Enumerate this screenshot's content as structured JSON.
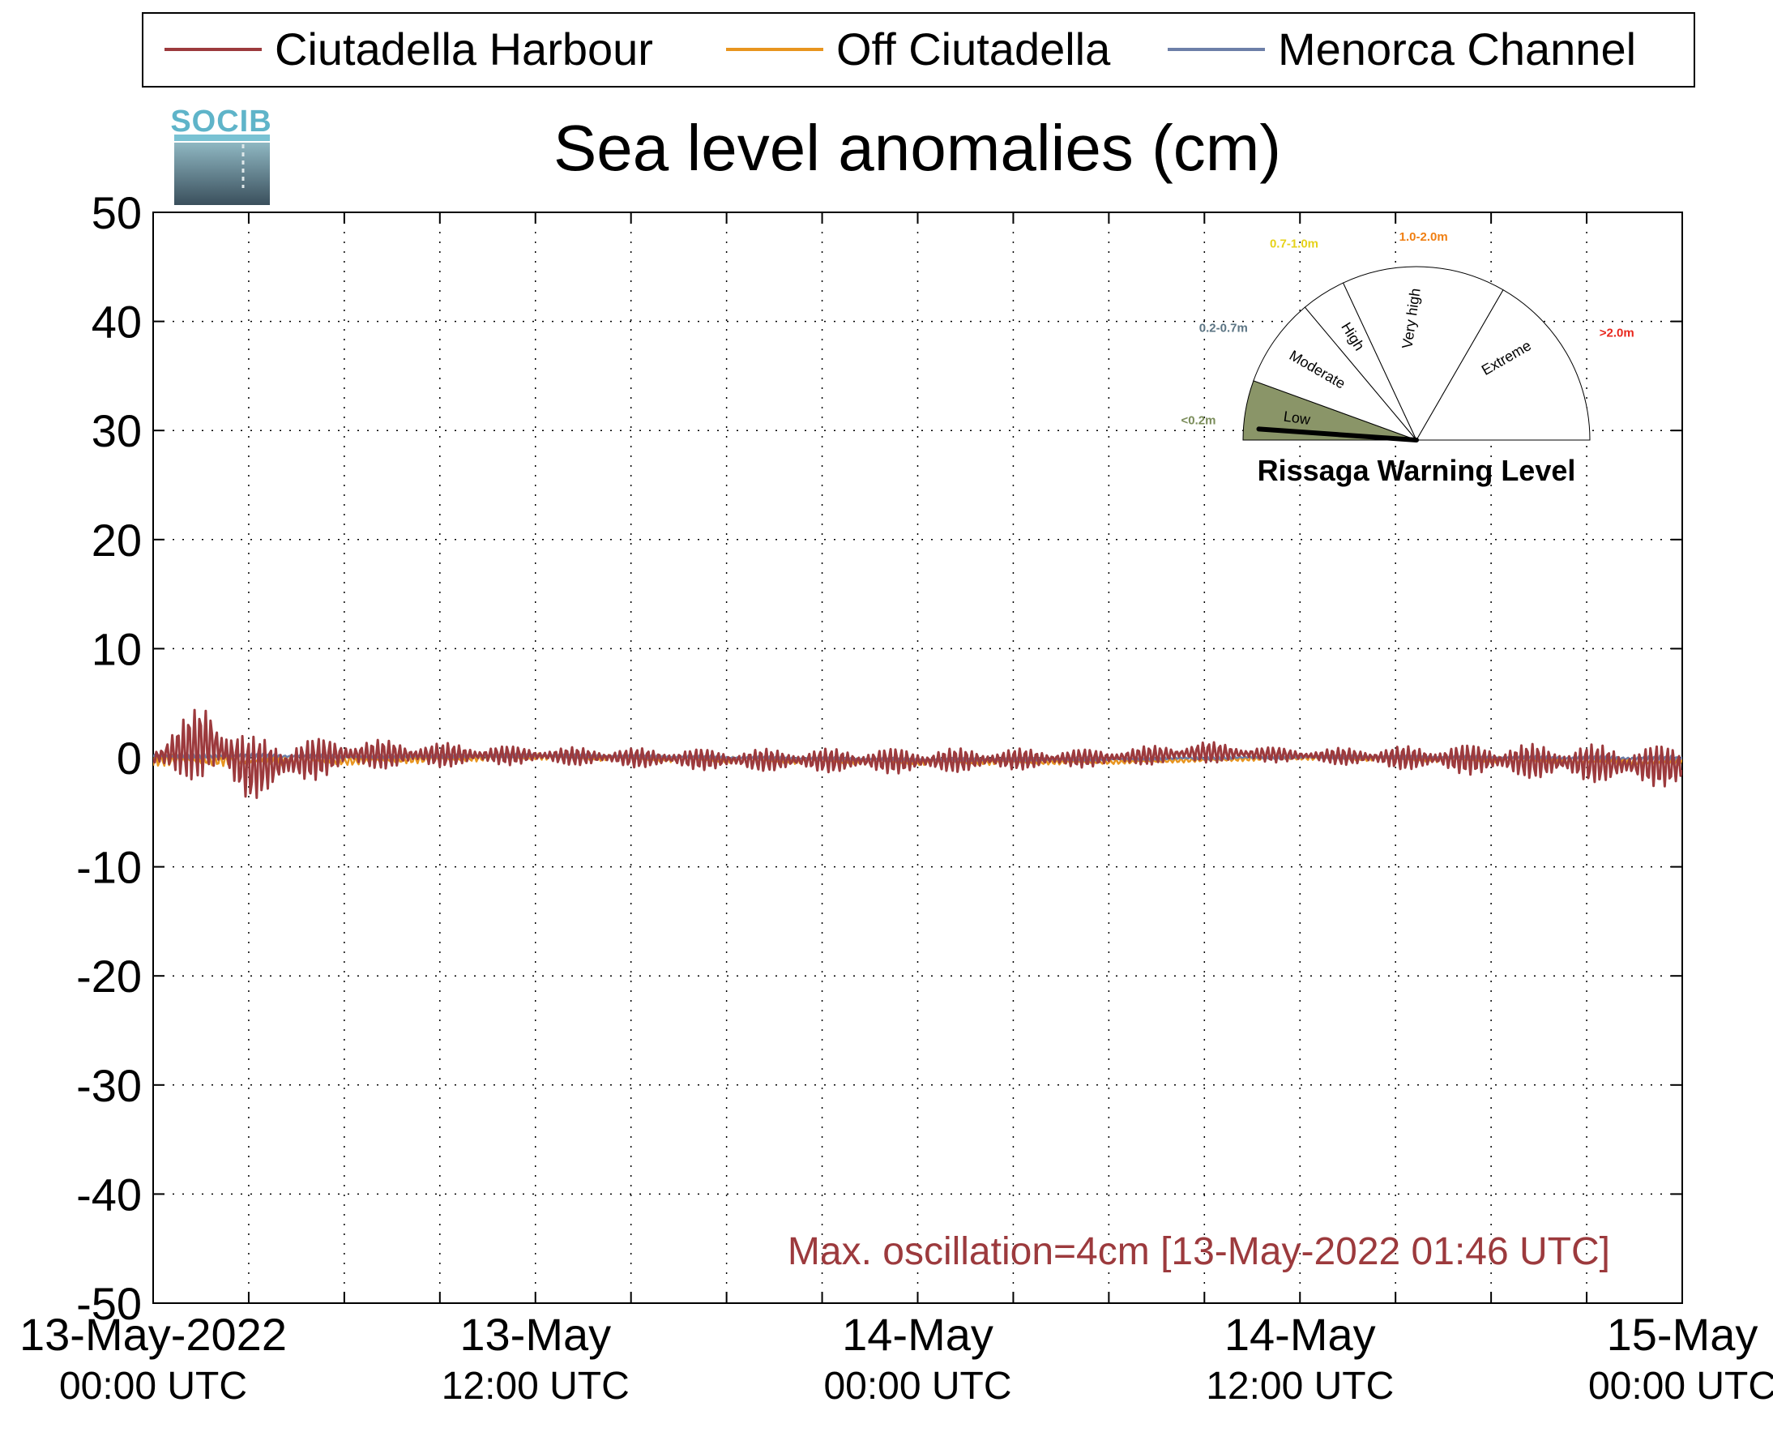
{
  "logo": {
    "text": "SOCIB"
  },
  "title": "Sea level anomalies (cm)",
  "legend": {
    "items": [
      {
        "label": "Ciutadella Harbour",
        "color": "#9c3a3d"
      },
      {
        "label": "Off Ciutadella",
        "color": "#e8951f"
      },
      {
        "label": "Menorca Channel",
        "color": "#6d7fa8"
      }
    ]
  },
  "annotation": "Max. oscillation=4cm [13-May-2022 01:46 UTC]",
  "gauge": {
    "title": "Rissaga Warning Level",
    "level": "Low",
    "sectors": [
      {
        "name": "Low",
        "range": "<0.2m",
        "range_color": "#7a8c5a",
        "fill": "#8a9568"
      },
      {
        "name": "Moderate",
        "range": "0.2-0.7m",
        "range_color": "#5b7483",
        "fill": "#ffffff"
      },
      {
        "name": "High",
        "range": "0.7-1.0m",
        "range_color": "#e6d21a",
        "fill": "#ffffff"
      },
      {
        "name": "Very high",
        "range": "1.0-2.0m",
        "range_color": "#f07f12",
        "fill": "#ffffff"
      },
      {
        "name": "Extreme",
        "range": ">2.0m",
        "range_color": "#e8261c",
        "fill": "#ffffff"
      }
    ]
  },
  "chart_data": {
    "type": "line",
    "title": "Sea level anomalies (cm)",
    "xlabel": "",
    "ylabel": "",
    "ylim": [
      -50,
      50
    ],
    "yticks": [
      50,
      40,
      30,
      20,
      10,
      0,
      -10,
      -20,
      -30,
      -40,
      -50
    ],
    "xlim": [
      "2022-05-13 00:00",
      "2022-05-15 00:00"
    ],
    "xtick_labels": [
      {
        "line1": "13-May-2022",
        "line2": "00:00 UTC"
      },
      {
        "line1": "13-May",
        "line2": "12:00 UTC"
      },
      {
        "line1": "14-May",
        "line2": "00:00 UTC"
      },
      {
        "line1": "14-May",
        "line2": "12:00 UTC"
      },
      {
        "line1": "15-May",
        "line2": "00:00 UTC"
      }
    ],
    "grid": true,
    "legend_position": "top",
    "series": [
      {
        "name": "Ciutadella Harbour",
        "color": "#9c3a3d",
        "x": [
          "2022-05-13 00:00",
          "2022-05-13 01:46",
          "2022-05-13 03:00",
          "2022-05-13 06:00",
          "2022-05-13 12:00",
          "2022-05-13 18:00",
          "2022-05-14 00:00",
          "2022-05-14 06:00",
          "2022-05-14 09:00",
          "2022-05-14 12:00",
          "2022-05-14 18:00",
          "2022-05-15 00:00"
        ],
        "y": [
          0,
          1.5,
          -1,
          0.3,
          0.2,
          -0.2,
          -0.3,
          0,
          0.5,
          0.2,
          -0.2,
          -0.8
        ],
        "envelope": [
          1.5,
          4,
          3,
          1.5,
          0.8,
          1,
          1.2,
          0.8,
          1,
          0.6,
          1.5,
          2
        ]
      },
      {
        "name": "Off Ciutadella",
        "color": "#e8951f",
        "x": [
          "2022-05-13 00:00",
          "2022-05-13 06:00",
          "2022-05-13 12:00",
          "2022-05-13 18:00",
          "2022-05-14 00:00",
          "2022-05-14 06:00",
          "2022-05-14 12:00",
          "2022-05-14 18:00",
          "2022-05-15 00:00"
        ],
        "y": [
          -0.2,
          -0.3,
          0.1,
          -0.2,
          -0.4,
          -0.4,
          0,
          -0.2,
          -0.4
        ],
        "envelope": [
          0.6,
          0.4,
          0.3,
          0.3,
          0.3,
          0.2,
          0.2,
          0.3,
          0.4
        ]
      },
      {
        "name": "Menorca Channel",
        "color": "#6d7fa8",
        "x": [
          "2022-05-13 00:00",
          "2022-05-13 06:00",
          "2022-05-13 12:00",
          "2022-05-13 18:00",
          "2022-05-14 00:00",
          "2022-05-14 06:00",
          "2022-05-14 12:00",
          "2022-05-14 18:00",
          "2022-05-15 00:00"
        ],
        "y": [
          0.2,
          0.1,
          0.2,
          0,
          -0.2,
          -0.1,
          0.1,
          0,
          -0.1
        ],
        "envelope": [
          0.3,
          0.2,
          0.2,
          0.2,
          0.2,
          0.2,
          0.2,
          0.2,
          0.3
        ]
      }
    ]
  }
}
